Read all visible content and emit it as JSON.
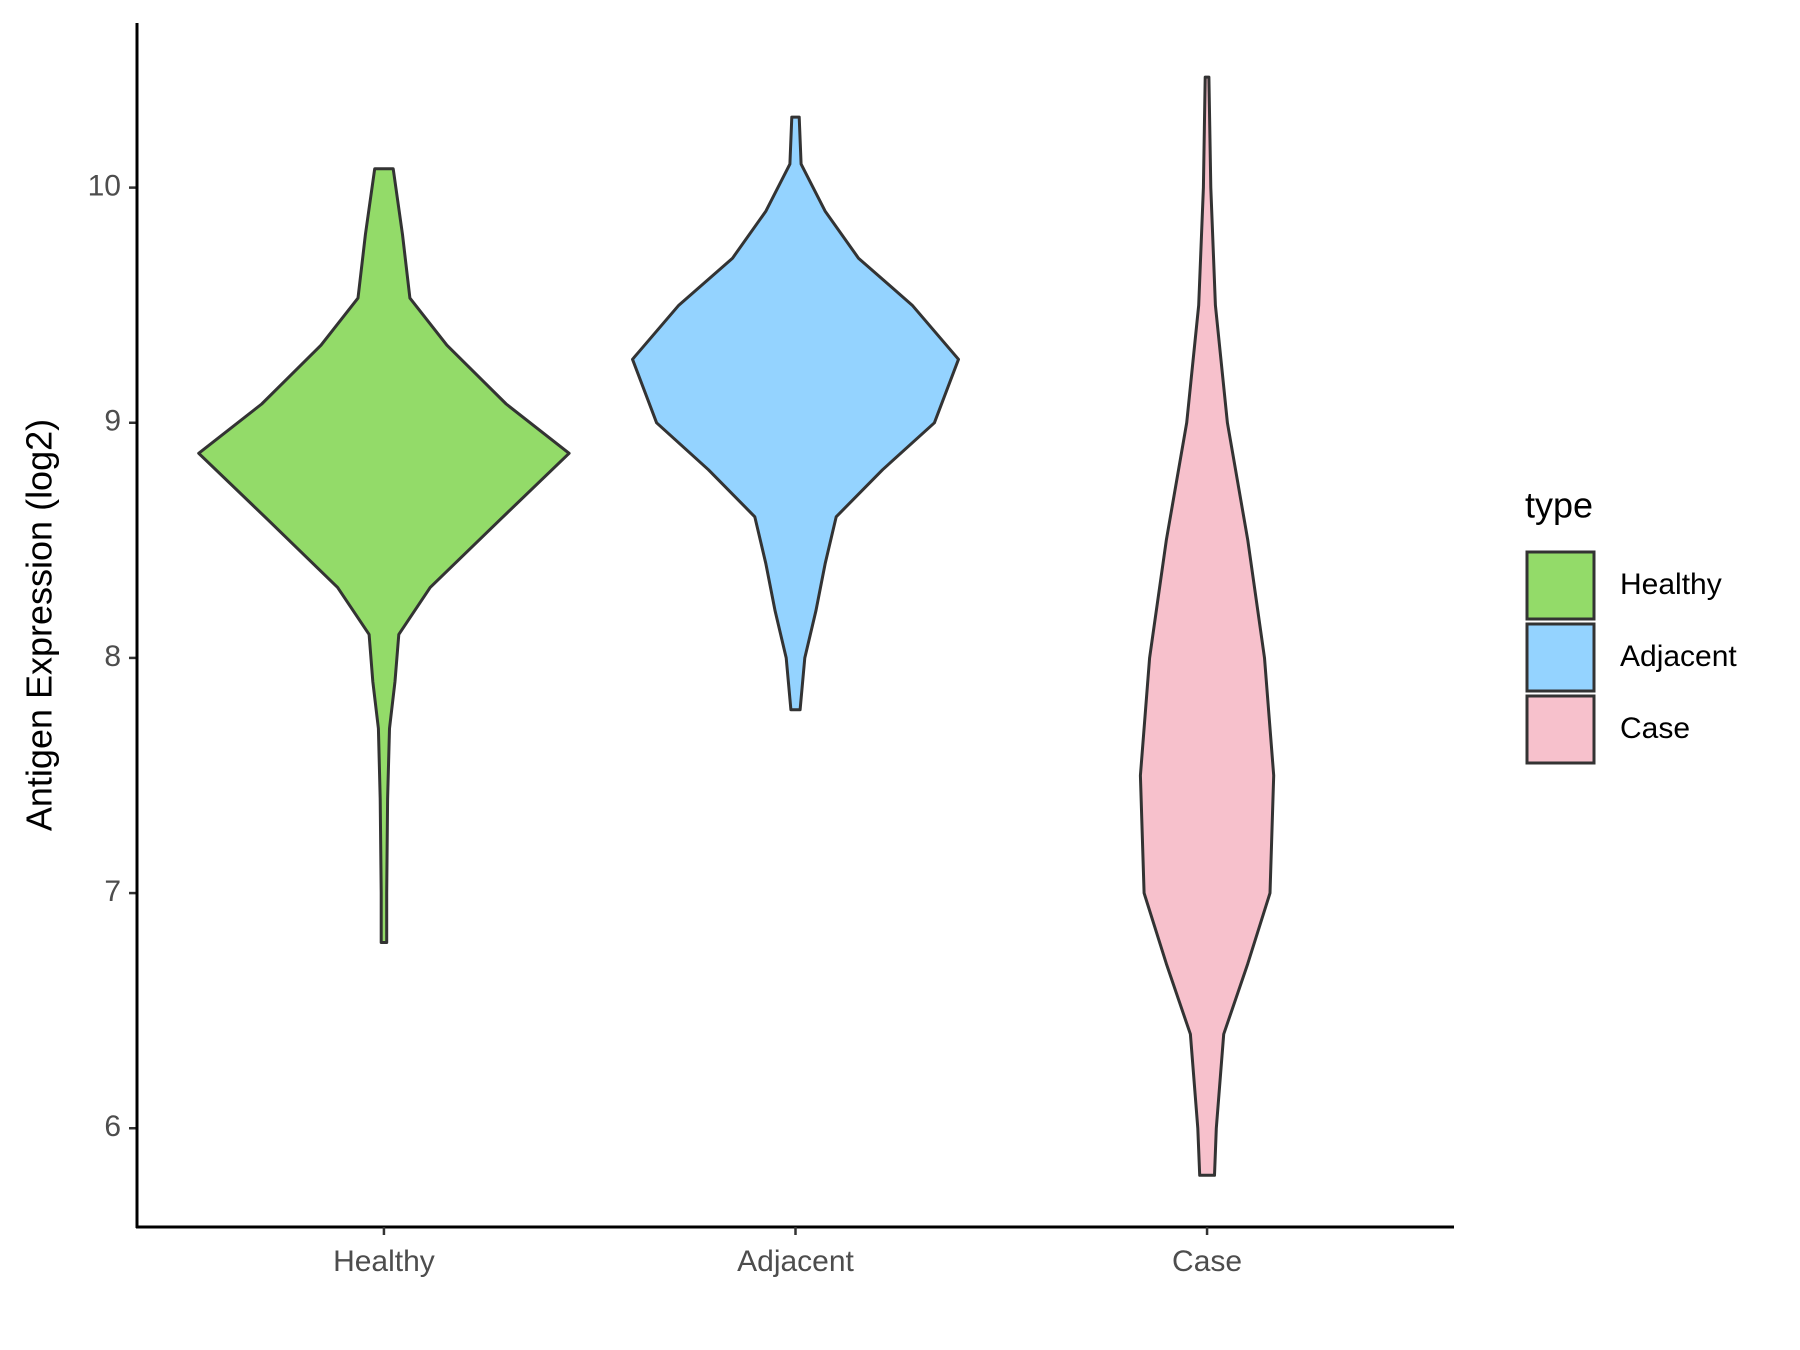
{
  "chart_data": {
    "type": "violin",
    "y_label": "Antigen Expression (log2)",
    "categories": [
      "Healthy",
      "Adjacent",
      "Case"
    ],
    "ylim": [
      5.58,
      10.7
    ],
    "yticks": [
      6,
      7,
      8,
      9,
      10
    ],
    "legend_title": "type",
    "legend": "right",
    "series": [
      {
        "name": "Healthy",
        "color": "#93db69",
        "y": [
          10.08,
          9.8,
          9.53,
          9.33,
          9.08,
          8.87,
          8.59,
          8.3,
          8.1,
          7.9,
          7.7,
          7.4,
          7.0,
          6.79
        ],
        "width": [
          0.05,
          0.1,
          0.14,
          0.34,
          0.66,
          1.0,
          0.63,
          0.25,
          0.08,
          0.06,
          0.03,
          0.02,
          0.015,
          0.015
        ]
      },
      {
        "name": "Adjacent",
        "color": "#94d3ff",
        "y": [
          10.3,
          10.1,
          9.9,
          9.7,
          9.5,
          9.27,
          9.0,
          8.8,
          8.6,
          8.4,
          8.2,
          8.0,
          7.78
        ],
        "width": [
          0.02,
          0.03,
          0.16,
          0.34,
          0.63,
          0.88,
          0.75,
          0.47,
          0.22,
          0.16,
          0.11,
          0.05,
          0.025
        ]
      },
      {
        "name": "Case",
        "color": "#f7c1cc",
        "y": [
          10.47,
          10.0,
          9.5,
          9.0,
          8.5,
          8.0,
          7.5,
          7.0,
          6.7,
          6.4,
          6.0,
          5.8
        ],
        "width": [
          0.01,
          0.02,
          0.045,
          0.11,
          0.22,
          0.31,
          0.36,
          0.34,
          0.22,
          0.09,
          0.05,
          0.04
        ]
      }
    ]
  }
}
